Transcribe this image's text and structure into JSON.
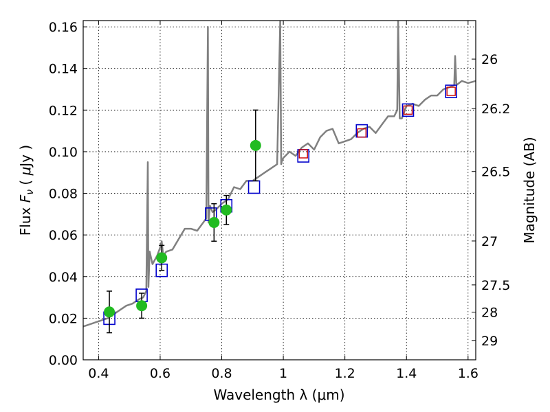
{
  "chart_data": {
    "type": "scatter",
    "xlabel": "Wavelength  λ (μm)",
    "ylabel": "Flux  F_ν  ( μJy )",
    "ylabel_right": "Magnitude (AB)",
    "xlim": [
      0.35,
      1.625
    ],
    "ylim": [
      0.0,
      0.163
    ],
    "grid": true,
    "x_ticks": [
      {
        "value": 0.4,
        "label": "0.4"
      },
      {
        "value": 0.6,
        "label": "0.6"
      },
      {
        "value": 0.8,
        "label": "0.8"
      },
      {
        "value": 1.0,
        "label": "1"
      },
      {
        "value": 1.2,
        "label": "1.2"
      },
      {
        "value": 1.4,
        "label": "1.4"
      },
      {
        "value": 1.6,
        "label": "1.6"
      }
    ],
    "y_ticks": [
      {
        "value": 0.0,
        "label": "0.00"
      },
      {
        "value": 0.02,
        "label": "0.02"
      },
      {
        "value": 0.04,
        "label": "0.04"
      },
      {
        "value": 0.06,
        "label": "0.06"
      },
      {
        "value": 0.08,
        "label": "0.08"
      },
      {
        "value": 0.1,
        "label": "0.10"
      },
      {
        "value": 0.12,
        "label": "0.12"
      },
      {
        "value": 0.14,
        "label": "0.14"
      },
      {
        "value": 0.16,
        "label": "0.16"
      }
    ],
    "right_ticks": [
      {
        "flux": 0.1445,
        "label": "26"
      },
      {
        "flux": 0.1207,
        "label": "26.2"
      },
      {
        "flux": 0.0905,
        "label": "26.5"
      },
      {
        "flux": 0.0571,
        "label": "27"
      },
      {
        "flux": 0.036,
        "label": "27.5"
      },
      {
        "flux": 0.0229,
        "label": "28"
      },
      {
        "flux": 0.0093,
        "label": "29"
      }
    ],
    "series": [
      {
        "kind": "model_spectrum",
        "color": "#808080",
        "x": [
          0.35,
          0.37,
          0.39,
          0.41,
          0.43,
          0.45,
          0.47,
          0.49,
          0.51,
          0.53,
          0.545,
          0.555,
          0.56,
          0.562,
          0.566,
          0.575,
          0.59,
          0.6,
          0.605,
          0.61,
          0.62,
          0.64,
          0.66,
          0.68,
          0.7,
          0.72,
          0.74,
          0.75,
          0.755,
          0.757,
          0.762,
          0.77,
          0.78,
          0.8,
          0.82,
          0.84,
          0.86,
          0.88,
          0.9,
          0.92,
          0.94,
          0.96,
          0.98,
          0.99,
          0.993,
          0.996,
          1.0,
          1.02,
          1.04,
          1.06,
          1.08,
          1.1,
          1.12,
          1.14,
          1.16,
          1.18,
          1.2,
          1.22,
          1.24,
          1.26,
          1.28,
          1.3,
          1.32,
          1.34,
          1.36,
          1.37,
          1.373,
          1.378,
          1.385,
          1.4,
          1.42,
          1.44,
          1.46,
          1.48,
          1.5,
          1.52,
          1.54,
          1.555,
          1.558,
          1.562,
          1.58,
          1.6,
          1.625
        ],
        "y": [
          0.016,
          0.017,
          0.018,
          0.019,
          0.02,
          0.022,
          0.024,
          0.026,
          0.027,
          0.029,
          0.03,
          0.033,
          0.095,
          0.035,
          0.052,
          0.046,
          0.05,
          0.054,
          0.057,
          0.05,
          0.052,
          0.053,
          0.058,
          0.063,
          0.063,
          0.062,
          0.066,
          0.068,
          0.16,
          0.066,
          0.074,
          0.071,
          0.072,
          0.075,
          0.077,
          0.083,
          0.082,
          0.086,
          0.086,
          0.088,
          0.09,
          0.092,
          0.094,
          0.163,
          0.094,
          0.096,
          0.097,
          0.1,
          0.098,
          0.102,
          0.104,
          0.101,
          0.107,
          0.11,
          0.111,
          0.104,
          0.105,
          0.106,
          0.109,
          0.111,
          0.112,
          0.109,
          0.113,
          0.117,
          0.117,
          0.12,
          0.163,
          0.116,
          0.116,
          0.122,
          0.123,
          0.122,
          0.125,
          0.127,
          0.127,
          0.13,
          0.131,
          0.132,
          0.146,
          0.132,
          0.134,
          0.133,
          0.134
        ]
      },
      {
        "kind": "model_photometry",
        "marker": "open-square",
        "color": "#0000cc",
        "x": [
          0.435,
          0.54,
          0.605,
          0.765,
          0.815,
          0.905,
          1.065,
          1.255,
          1.405,
          1.545
        ],
        "y": [
          0.02,
          0.031,
          0.043,
          0.07,
          0.074,
          0.083,
          0.098,
          0.11,
          0.12,
          0.129
        ]
      },
      {
        "kind": "observed_photometry_red",
        "marker": "open-square",
        "color": "#cc0000",
        "x": [
          1.065,
          1.255,
          1.405,
          1.545
        ],
        "y": [
          0.099,
          0.109,
          0.12,
          0.129
        ]
      },
      {
        "kind": "observed_photometry",
        "marker": "filled-circle",
        "color": "#22bb22",
        "x": [
          0.435,
          0.54,
          0.605,
          0.775,
          0.815,
          0.91
        ],
        "y": [
          0.023,
          0.026,
          0.049,
          0.066,
          0.072,
          0.103
        ],
        "yerr": [
          0.01,
          0.006,
          0.006,
          0.009,
          0.007,
          0.017
        ]
      }
    ]
  }
}
